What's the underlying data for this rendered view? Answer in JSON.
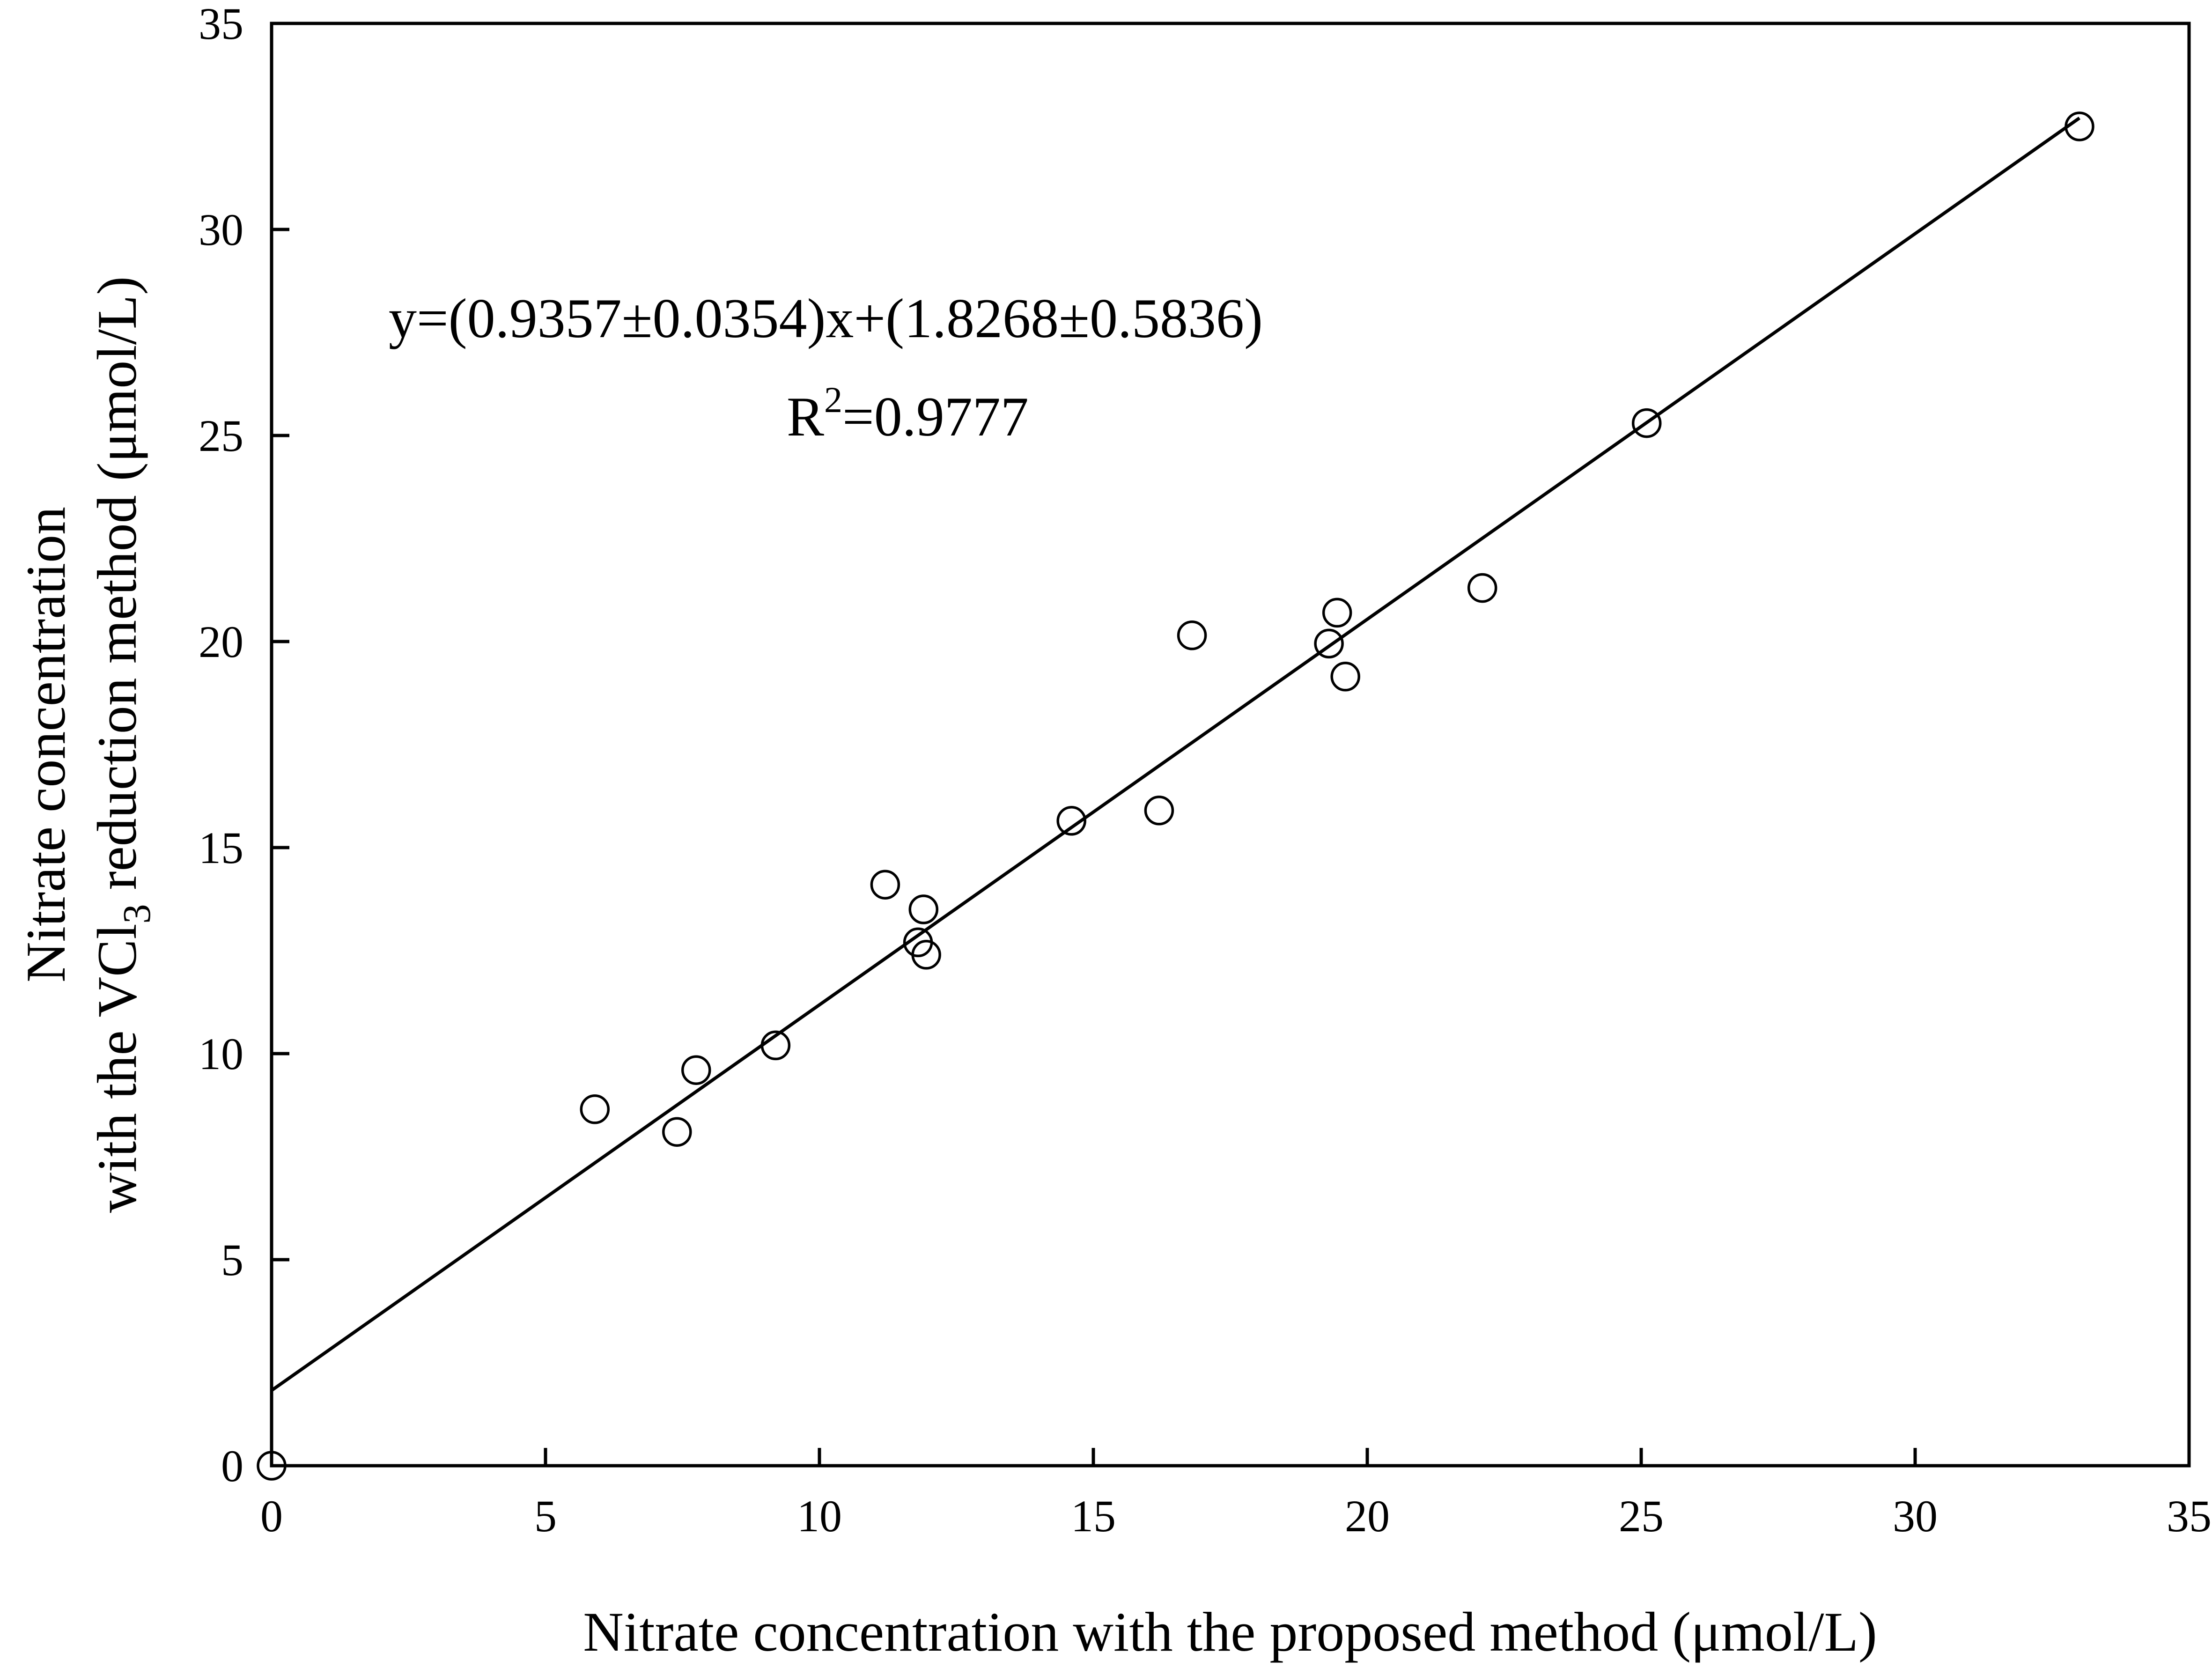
{
  "chart_data": {
    "type": "scatter",
    "xlabel": "Nitrate concentration with the proposed method (μmol/L)",
    "ylabel_line1": "Nitrate concentration",
    "ylabel_line2_pre": "with the VCl",
    "ylabel_line2_sub": "3",
    "ylabel_line2_post": " reduction method (μmol/L)",
    "xlim": [
      0,
      35
    ],
    "ylim": [
      0,
      35
    ],
    "xticks": [
      0,
      5,
      10,
      15,
      20,
      25,
      30,
      35
    ],
    "yticks": [
      0,
      5,
      10,
      15,
      20,
      25,
      30,
      35
    ],
    "grid": false,
    "equation": "y=(0.9357±0.0354)x+(1.8268±0.5836)",
    "r2_prefix": "R",
    "r2_sup": "2",
    "r2_value": "=0.9777",
    "fit": {
      "slope": 0.9357,
      "intercept": 1.8268
    },
    "points": [
      {
        "x": 0,
        "y": 0
      },
      {
        "x": 5.9,
        "y": 8.65
      },
      {
        "x": 7.4,
        "y": 8.1
      },
      {
        "x": 7.75,
        "y": 9.6
      },
      {
        "x": 9.2,
        "y": 10.2
      },
      {
        "x": 11.2,
        "y": 14.1
      },
      {
        "x": 11.8,
        "y": 12.7
      },
      {
        "x": 11.9,
        "y": 13.5
      },
      {
        "x": 11.95,
        "y": 12.4
      },
      {
        "x": 14.6,
        "y": 15.65
      },
      {
        "x": 16.2,
        "y": 15.9
      },
      {
        "x": 16.8,
        "y": 20.15
      },
      {
        "x": 19.3,
        "y": 19.95
      },
      {
        "x": 19.45,
        "y": 20.7
      },
      {
        "x": 19.6,
        "y": 19.15
      },
      {
        "x": 22.1,
        "y": 21.3
      },
      {
        "x": 25.1,
        "y": 25.3
      },
      {
        "x": 33.0,
        "y": 32.5
      }
    ]
  }
}
